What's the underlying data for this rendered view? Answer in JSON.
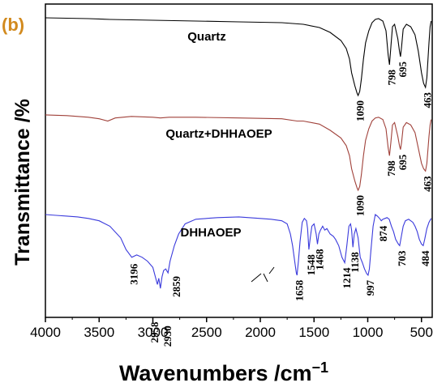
{
  "chart_data": {
    "type": "line",
    "panel_label": "(b)",
    "panel_label_color": "#d28a1e",
    "xlabel": "Wavenumbers /cm",
    "xlabel_superscript": "−1",
    "ylabel": "Transmittance /%",
    "xlim": [
      4000,
      400
    ],
    "x_ticks": [
      "4000",
      "3500",
      "3000",
      "2500",
      "2000",
      "1500",
      "1000",
      "500"
    ],
    "grid": false,
    "series": [
      {
        "name": "Quartz",
        "color": "#000000",
        "points": [
          [
            4000,
            0.04
          ],
          [
            3800,
            0.045
          ],
          [
            3600,
            0.05
          ],
          [
            3400,
            0.06
          ],
          [
            3000,
            0.07
          ],
          [
            2600,
            0.08
          ],
          [
            2200,
            0.09
          ],
          [
            1800,
            0.1
          ],
          [
            1600,
            0.12
          ],
          [
            1450,
            0.16
          ],
          [
            1350,
            0.22
          ],
          [
            1250,
            0.32
          ],
          [
            1200,
            0.42
          ],
          [
            1170,
            0.55
          ],
          [
            1150,
            0.72
          ],
          [
            1120,
            0.88
          ],
          [
            1100,
            0.97
          ],
          [
            1090,
            1.0
          ],
          [
            1075,
            0.95
          ],
          [
            1060,
            0.8
          ],
          [
            1040,
            0.55
          ],
          [
            1020,
            0.35
          ],
          [
            990,
            0.2
          ],
          [
            960,
            0.1
          ],
          [
            930,
            0.06
          ],
          [
            900,
            0.05
          ],
          [
            860,
            0.08
          ],
          [
            830,
            0.2
          ],
          [
            810,
            0.5
          ],
          [
            798,
            0.62
          ],
          [
            785,
            0.4
          ],
          [
            770,
            0.15
          ],
          [
            750,
            0.12
          ],
          [
            720,
            0.3
          ],
          [
            705,
            0.45
          ],
          [
            695,
            0.52
          ],
          [
            685,
            0.4
          ],
          [
            670,
            0.18
          ],
          [
            640,
            0.12
          ],
          [
            600,
            0.15
          ],
          [
            560,
            0.25
          ],
          [
            530,
            0.45
          ],
          [
            500,
            0.72
          ],
          [
            480,
            0.85
          ],
          [
            463,
            0.9
          ],
          [
            450,
            0.78
          ],
          [
            430,
            0.35
          ],
          [
            420,
            0.15
          ],
          [
            410,
            0.08
          ]
        ]
      },
      {
        "name": "Quartz+DHHAOEP",
        "color": "#a0413a",
        "points": [
          [
            4000,
            0.02
          ],
          [
            3800,
            0.03
          ],
          [
            3600,
            0.05
          ],
          [
            3500,
            0.07
          ],
          [
            3420,
            0.1
          ],
          [
            3350,
            0.06
          ],
          [
            3200,
            0.04
          ],
          [
            3000,
            0.05
          ],
          [
            2930,
            0.06
          ],
          [
            2850,
            0.05
          ],
          [
            2600,
            0.05
          ],
          [
            2200,
            0.06
          ],
          [
            1800,
            0.07
          ],
          [
            1658,
            0.1
          ],
          [
            1600,
            0.1
          ],
          [
            1450,
            0.14
          ],
          [
            1350,
            0.22
          ],
          [
            1250,
            0.32
          ],
          [
            1200,
            0.42
          ],
          [
            1170,
            0.55
          ],
          [
            1150,
            0.72
          ],
          [
            1120,
            0.88
          ],
          [
            1100,
            0.97
          ],
          [
            1090,
            1.0
          ],
          [
            1075,
            0.95
          ],
          [
            1060,
            0.8
          ],
          [
            1040,
            0.55
          ],
          [
            1020,
            0.35
          ],
          [
            990,
            0.2
          ],
          [
            960,
            0.1
          ],
          [
            930,
            0.06
          ],
          [
            900,
            0.05
          ],
          [
            860,
            0.08
          ],
          [
            830,
            0.2
          ],
          [
            810,
            0.45
          ],
          [
            798,
            0.55
          ],
          [
            785,
            0.38
          ],
          [
            770,
            0.15
          ],
          [
            750,
            0.12
          ],
          [
            720,
            0.3
          ],
          [
            705,
            0.42
          ],
          [
            695,
            0.47
          ],
          [
            685,
            0.38
          ],
          [
            670,
            0.18
          ],
          [
            640,
            0.12
          ],
          [
            600,
            0.15
          ],
          [
            560,
            0.25
          ],
          [
            530,
            0.45
          ],
          [
            500,
            0.65
          ],
          [
            480,
            0.72
          ],
          [
            463,
            0.75
          ],
          [
            450,
            0.65
          ],
          [
            430,
            0.3
          ],
          [
            420,
            0.15
          ],
          [
            410,
            0.08
          ]
        ]
      },
      {
        "name": "DHHAOEP",
        "color": "#3a3adc",
        "points": [
          [
            4000,
            0.0
          ],
          [
            3900,
            0.01
          ],
          [
            3800,
            0.02
          ],
          [
            3700,
            0.03
          ],
          [
            3600,
            0.05
          ],
          [
            3500,
            0.08
          ],
          [
            3400,
            0.15
          ],
          [
            3300,
            0.3
          ],
          [
            3250,
            0.45
          ],
          [
            3196,
            0.55
          ],
          [
            3150,
            0.52
          ],
          [
            3100,
            0.55
          ],
          [
            3050,
            0.6
          ],
          [
            3000,
            0.68
          ],
          [
            2958,
            0.9
          ],
          [
            2945,
            0.82
          ],
          [
            2930,
            0.95
          ],
          [
            2915,
            0.8
          ],
          [
            2900,
            0.72
          ],
          [
            2880,
            0.7
          ],
          [
            2859,
            0.75
          ],
          [
            2840,
            0.6
          ],
          [
            2800,
            0.4
          ],
          [
            2760,
            0.25
          ],
          [
            2700,
            0.12
          ],
          [
            2600,
            0.06
          ],
          [
            2400,
            0.04
          ],
          [
            2200,
            0.03
          ],
          [
            2000,
            0.05
          ],
          [
            1900,
            0.06
          ],
          [
            1800,
            0.08
          ],
          [
            1750,
            0.12
          ],
          [
            1720,
            0.25
          ],
          [
            1700,
            0.4
          ],
          [
            1680,
            0.6
          ],
          [
            1665,
            0.75
          ],
          [
            1658,
            0.78
          ],
          [
            1645,
            0.6
          ],
          [
            1630,
            0.35
          ],
          [
            1610,
            0.1
          ],
          [
            1590,
            0.05
          ],
          [
            1570,
            0.08
          ],
          [
            1560,
            0.18
          ],
          [
            1548,
            0.45
          ],
          [
            1535,
            0.3
          ],
          [
            1520,
            0.15
          ],
          [
            1500,
            0.12
          ],
          [
            1480,
            0.25
          ],
          [
            1468,
            0.38
          ],
          [
            1455,
            0.25
          ],
          [
            1440,
            0.2
          ],
          [
            1420,
            0.15
          ],
          [
            1400,
            0.2
          ],
          [
            1380,
            0.18
          ],
          [
            1350,
            0.25
          ],
          [
            1320,
            0.28
          ],
          [
            1300,
            0.32
          ],
          [
            1270,
            0.4
          ],
          [
            1240,
            0.55
          ],
          [
            1214,
            0.62
          ],
          [
            1195,
            0.4
          ],
          [
            1175,
            0.15
          ],
          [
            1160,
            0.12
          ],
          [
            1150,
            0.2
          ],
          [
            1138,
            0.42
          ],
          [
            1125,
            0.25
          ],
          [
            1110,
            0.18
          ],
          [
            1090,
            0.3
          ],
          [
            1070,
            0.55
          ],
          [
            1050,
            0.62
          ],
          [
            1030,
            0.7
          ],
          [
            1010,
            0.76
          ],
          [
            997,
            0.78
          ],
          [
            985,
            0.7
          ],
          [
            970,
            0.45
          ],
          [
            950,
            0.15
          ],
          [
            930,
            0.0
          ],
          [
            910,
            0.02
          ],
          [
            890,
            0.05
          ],
          [
            874,
            0.08
          ],
          [
            860,
            0.06
          ],
          [
            840,
            0.05
          ],
          [
            820,
            0.04
          ],
          [
            800,
            0.06
          ],
          [
            780,
            0.15
          ],
          [
            760,
            0.22
          ],
          [
            740,
            0.32
          ],
          [
            715,
            0.38
          ],
          [
            703,
            0.4
          ],
          [
            690,
            0.3
          ],
          [
            670,
            0.15
          ],
          [
            650,
            0.08
          ],
          [
            620,
            0.06
          ],
          [
            600,
            0.08
          ],
          [
            580,
            0.1
          ],
          [
            560,
            0.15
          ],
          [
            540,
            0.22
          ],
          [
            520,
            0.32
          ],
          [
            500,
            0.38
          ],
          [
            484,
            0.4
          ],
          [
            470,
            0.32
          ],
          [
            450,
            0.18
          ],
          [
            430,
            0.1
          ],
          [
            410,
            0.05
          ]
        ]
      }
    ],
    "annotations": [
      {
        "text": "1090",
        "x": 1090,
        "series": 0
      },
      {
        "text": "798",
        "x": 798,
        "series": 0
      },
      {
        "text": "695",
        "x": 695,
        "series": 0
      },
      {
        "text": "463",
        "x": 463,
        "series": 0
      },
      {
        "text": "1090",
        "x": 1090,
        "series": 1
      },
      {
        "text": "798",
        "x": 798,
        "series": 1
      },
      {
        "text": "695",
        "x": 695,
        "series": 1
      },
      {
        "text": "463",
        "x": 463,
        "series": 1
      },
      {
        "text": "3196",
        "x": 3196,
        "series": 2
      },
      {
        "text": "2958",
        "x": 2958,
        "series": 2
      },
      {
        "text": "2930",
        "x": 2930,
        "series": 2
      },
      {
        "text": "2859",
        "x": 2859,
        "series": 2
      },
      {
        "text": "1658",
        "x": 1658,
        "series": 2
      },
      {
        "text": "1548",
        "x": 1548,
        "series": 2
      },
      {
        "text": "1468",
        "x": 1468,
        "series": 2
      },
      {
        "text": "1214",
        "x": 1214,
        "series": 2
      },
      {
        "text": "1138",
        "x": 1138,
        "series": 2
      },
      {
        "text": "997",
        "x": 997,
        "series": 2
      },
      {
        "text": "874",
        "x": 874,
        "series": 2
      },
      {
        "text": "703",
        "x": 703,
        "series": 2
      },
      {
        "text": "484",
        "x": 484,
        "series": 2
      }
    ]
  }
}
